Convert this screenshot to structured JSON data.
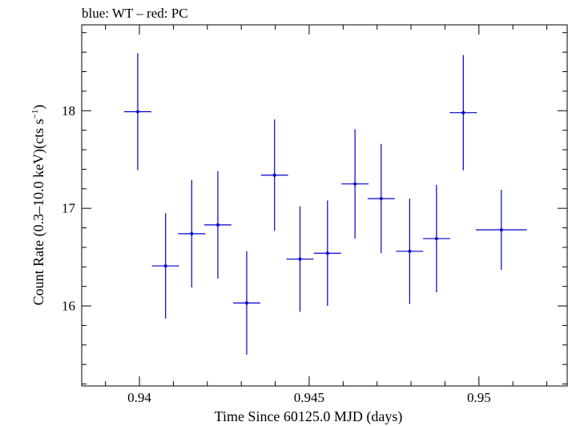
{
  "chart_data": {
    "type": "scatter",
    "title": "blue: WT – red: PC",
    "xlabel": "Time Since 60125.0 MJD (days)",
    "ylabel_main": "Count Rate (0.3–10.0 keV)(cts s",
    "ylabel_sup": "−1",
    "ylabel_close": ")",
    "xlim": [
      0.9383,
      0.9526
    ],
    "ylim": [
      15.18,
      18.88
    ],
    "xticks": [
      0.94,
      0.945,
      0.95
    ],
    "xtick_labels": [
      "0.94",
      "0.945",
      "0.95"
    ],
    "yticks": [
      16,
      17,
      18
    ],
    "ytick_labels": [
      "16",
      "17",
      "18"
    ],
    "grid": false,
    "series": [
      {
        "color": "#0000cc",
        "points": [
          {
            "x": 0.93995,
            "xerr": 0.0004,
            "y": 17.99,
            "yerr": 0.6
          },
          {
            "x": 0.94077,
            "xerr": 0.0004,
            "y": 16.41,
            "yerr": 0.54
          },
          {
            "x": 0.94154,
            "xerr": 0.0004,
            "y": 16.74,
            "yerr": 0.55
          },
          {
            "x": 0.94231,
            "xerr": 0.0004,
            "y": 16.83,
            "yerr": 0.55
          },
          {
            "x": 0.94316,
            "xerr": 0.0004,
            "y": 16.03,
            "yerr": 0.53
          },
          {
            "x": 0.94398,
            "xerr": 0.0004,
            "y": 17.34,
            "yerr": 0.57
          },
          {
            "x": 0.94473,
            "xerr": 0.0004,
            "y": 16.48,
            "yerr": 0.54
          },
          {
            "x": 0.94554,
            "xerr": 0.0004,
            "y": 16.54,
            "yerr": 0.54
          },
          {
            "x": 0.94635,
            "xerr": 0.0004,
            "y": 17.25,
            "yerr": 0.56
          },
          {
            "x": 0.94712,
            "xerr": 0.0004,
            "y": 17.1,
            "yerr": 0.56
          },
          {
            "x": 0.94796,
            "xerr": 0.0004,
            "y": 16.56,
            "yerr": 0.54
          },
          {
            "x": 0.94875,
            "xerr": 0.0004,
            "y": 16.69,
            "yerr": 0.55
          },
          {
            "x": 0.94954,
            "xerr": 0.0004,
            "y": 17.98,
            "yerr": 0.59
          },
          {
            "x": 0.95066,
            "xerr": 0.00075,
            "y": 16.78,
            "yerr": 0.41
          }
        ]
      }
    ]
  }
}
